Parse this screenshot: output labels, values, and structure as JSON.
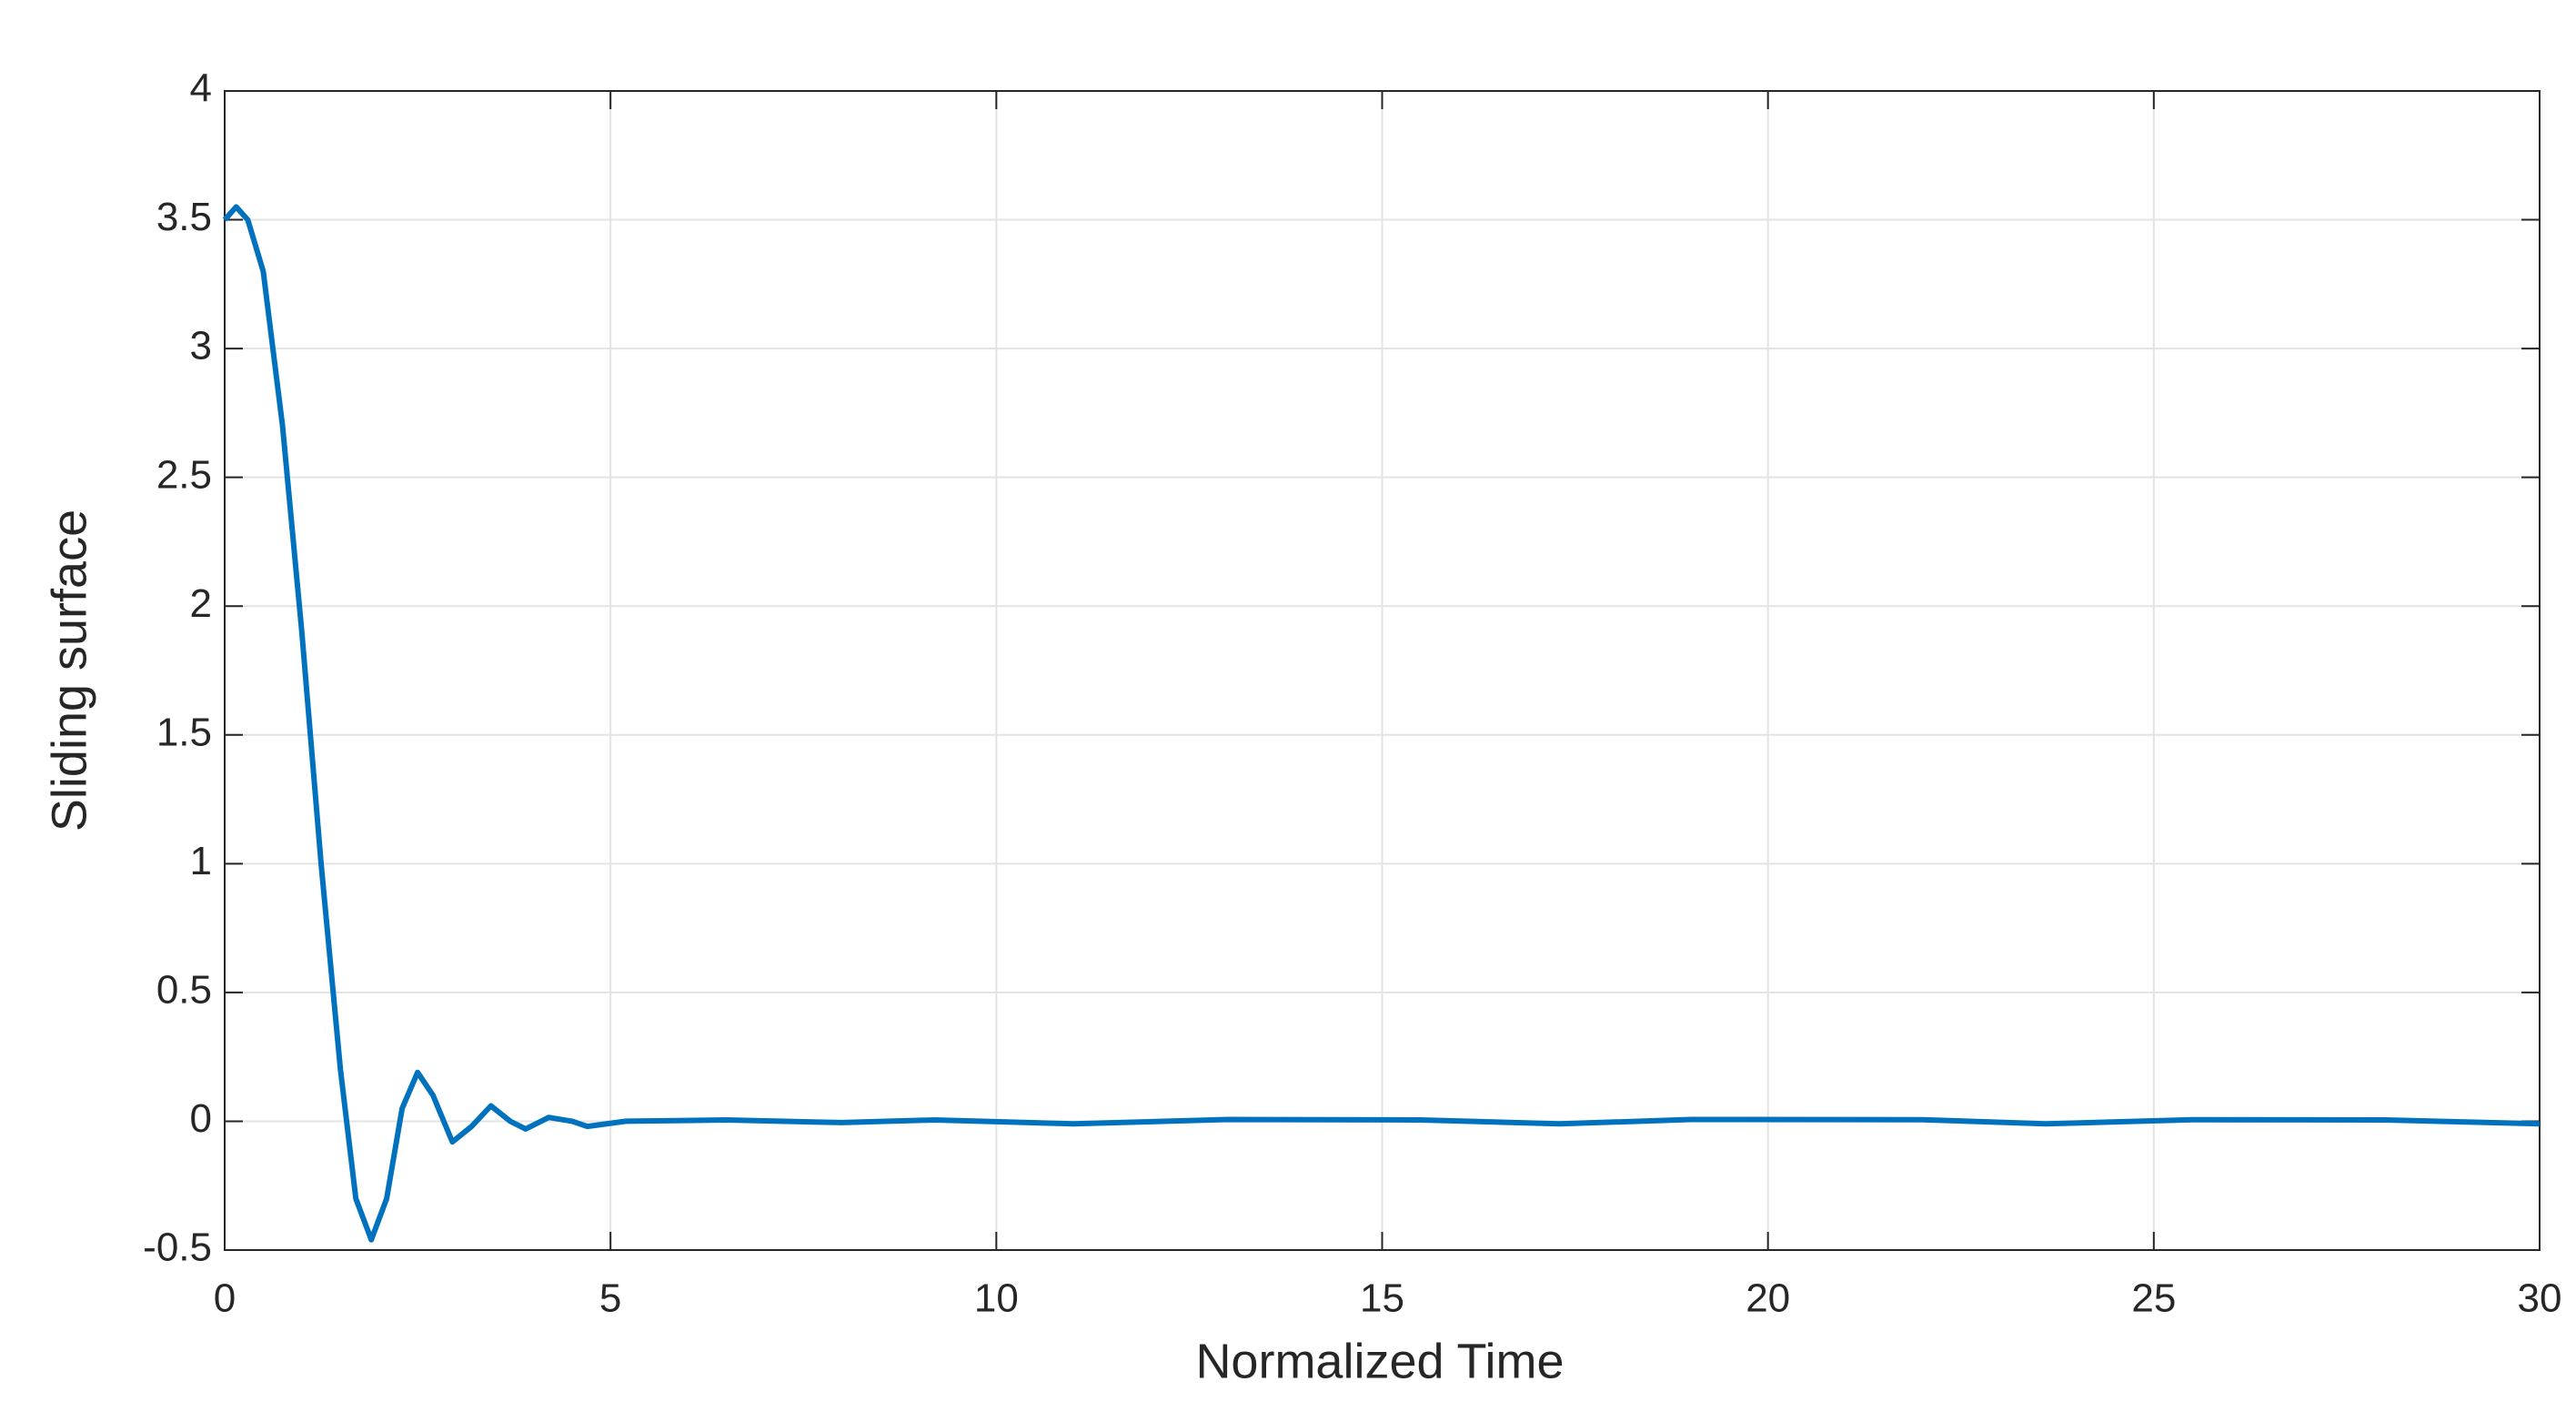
{
  "chart_data": {
    "type": "line",
    "xlabel": "Normalized Time",
    "ylabel": "Sliding surface",
    "series": [
      {
        "color": "#0072bd",
        "x": [
          0,
          0.15,
          0.3,
          0.5,
          0.75,
          1.0,
          1.25,
          1.5,
          1.7,
          1.9,
          2.1,
          2.3,
          2.5,
          2.7,
          2.95,
          3.2,
          3.45,
          3.7,
          3.9,
          4.2,
          4.5,
          4.7,
          5.2,
          6.5,
          8,
          9.2,
          11,
          13,
          15.5,
          17.3,
          19,
          22,
          23.6,
          25.5,
          28,
          30
        ],
        "values": [
          3.5,
          3.55,
          3.5,
          3.3,
          2.7,
          1.9,
          1.0,
          0.2,
          -0.3,
          -0.46,
          -0.3,
          0.05,
          0.19,
          0.1,
          -0.08,
          -0.02,
          0.06,
          0.0,
          -0.03,
          0.015,
          0,
          -0.02,
          0,
          0.005,
          -0.005,
          0.005,
          -0.01,
          0.007,
          0.005,
          -0.01,
          0.007,
          0.006,
          -0.01,
          0.006,
          0.005,
          -0.01
        ]
      }
    ],
    "xlim": [
      0,
      30
    ],
    "xticks": [
      0,
      5,
      10,
      15,
      20,
      25,
      30
    ],
    "ylim": [
      -0.5,
      4
    ],
    "yticks": [
      -0.5,
      0,
      0.5,
      1,
      1.5,
      2,
      2.5,
      3,
      3.5,
      4
    ],
    "grid": true
  }
}
